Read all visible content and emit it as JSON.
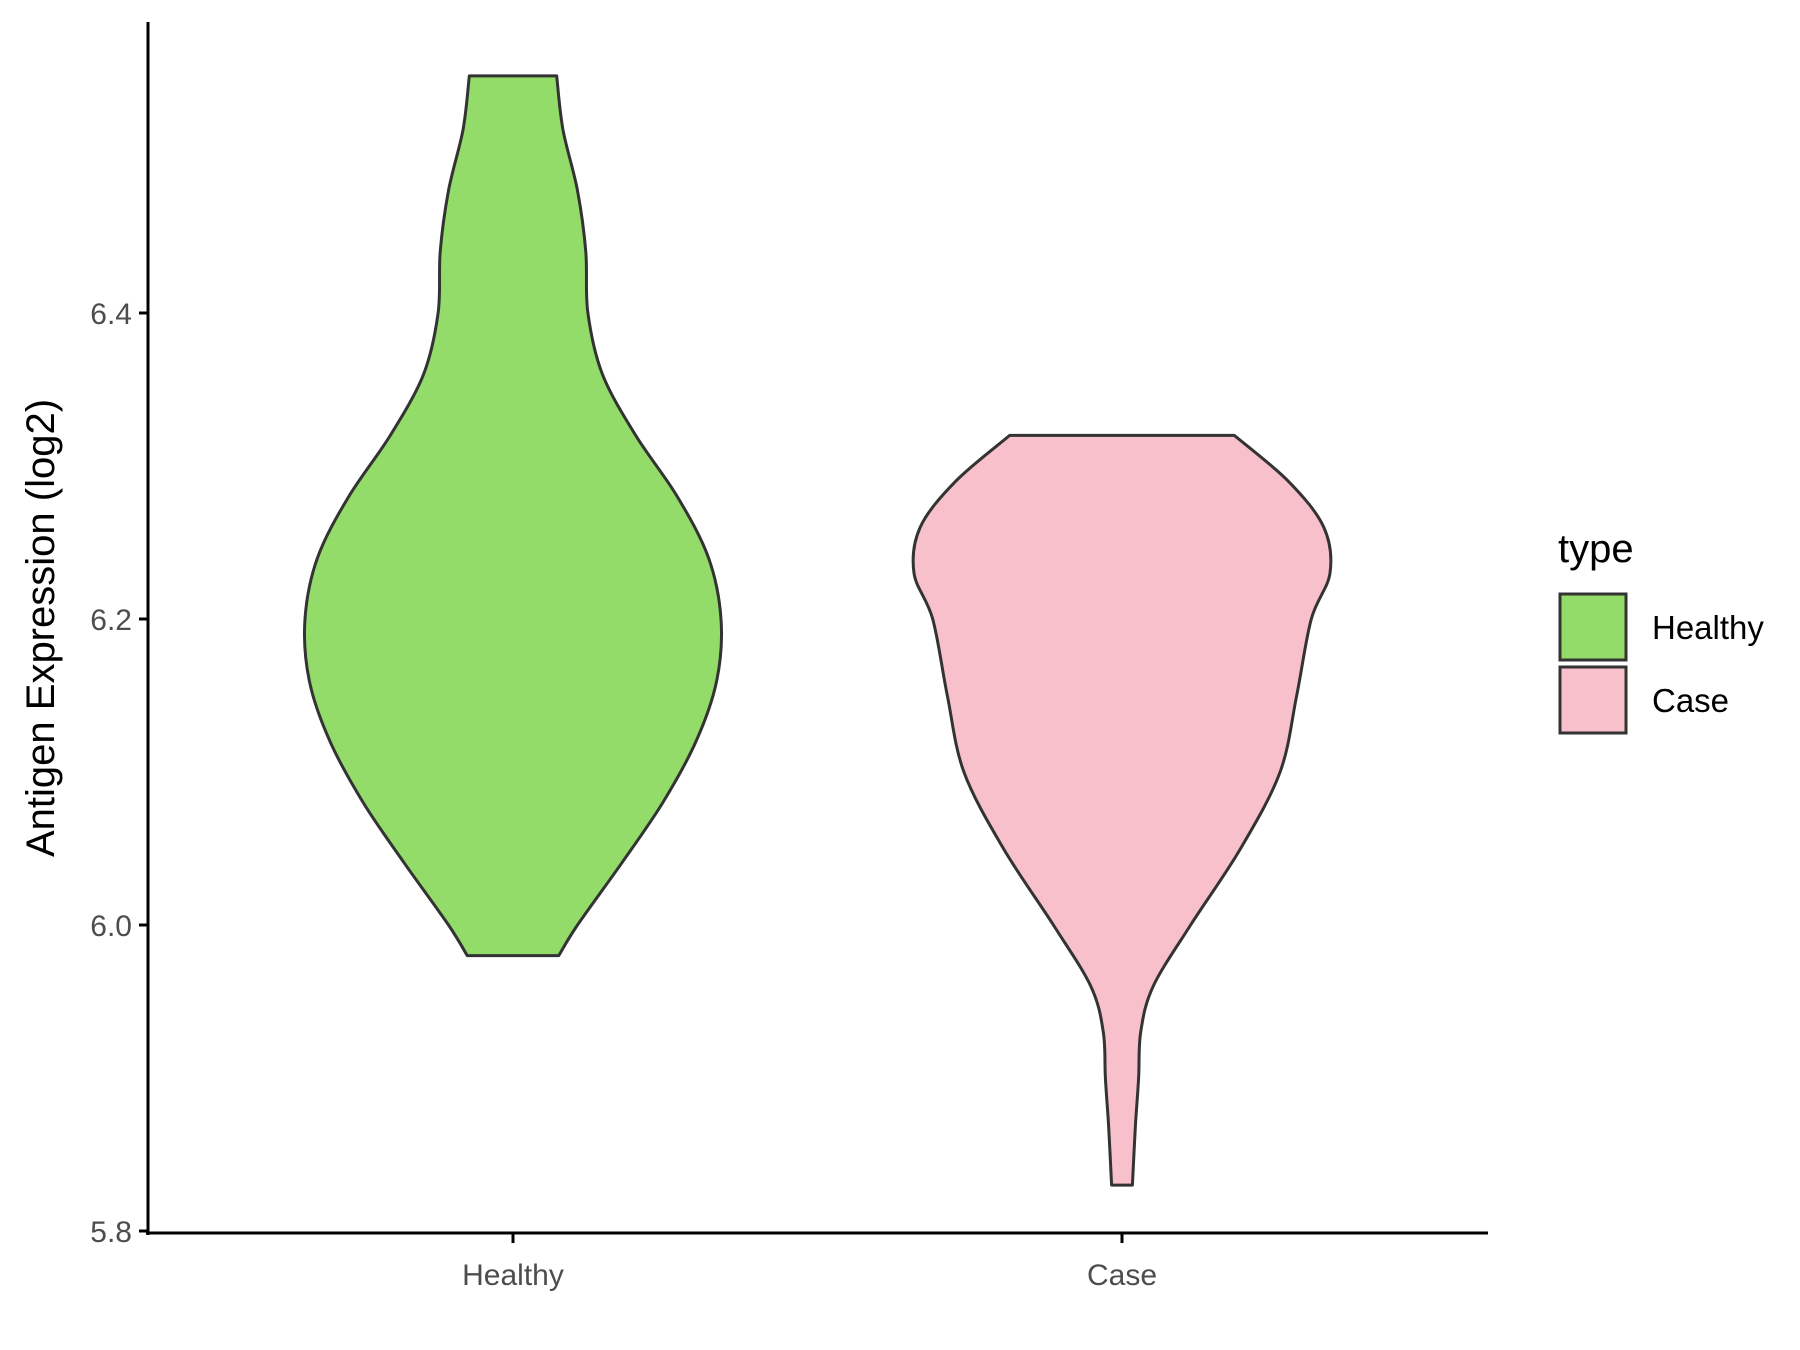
{
  "chart_data": {
    "type": "violin",
    "title": "",
    "xlabel": "",
    "ylabel": "Antigen Expression (log2)",
    "ylim": [
      5.8,
      6.6
    ],
    "yticks": [
      "5.8",
      "6.0",
      "6.2",
      "6.4"
    ],
    "categories": [
      "Healthy",
      "Case"
    ],
    "grid": false,
    "legend": {
      "title": "type",
      "position": "right",
      "entries": [
        {
          "label": "Healthy",
          "color": "#93DC6A"
        },
        {
          "label": "Case",
          "color": "#F7C0CB"
        }
      ]
    },
    "series": [
      {
        "name": "Healthy",
        "color": "#93DC6A",
        "min": 5.98,
        "max": 6.555,
        "density_profile": [
          [
            5.98,
            0.22
          ],
          [
            6.0,
            0.31
          ],
          [
            6.04,
            0.52
          ],
          [
            6.08,
            0.72
          ],
          [
            6.12,
            0.88
          ],
          [
            6.16,
            0.98
          ],
          [
            6.2,
            1.0
          ],
          [
            6.24,
            0.94
          ],
          [
            6.28,
            0.79
          ],
          [
            6.32,
            0.59
          ],
          [
            6.36,
            0.43
          ],
          [
            6.4,
            0.36
          ],
          [
            6.44,
            0.35
          ],
          [
            6.48,
            0.31
          ],
          [
            6.52,
            0.24
          ],
          [
            6.555,
            0.21
          ]
        ]
      },
      {
        "name": "Case",
        "color": "#F7C0CB",
        "min": 5.83,
        "max": 6.32,
        "density_profile": [
          [
            5.83,
            0.05
          ],
          [
            5.87,
            0.065
          ],
          [
            5.9,
            0.08
          ],
          [
            5.93,
            0.09
          ],
          [
            5.96,
            0.15
          ],
          [
            6.0,
            0.33
          ],
          [
            6.05,
            0.57
          ],
          [
            6.1,
            0.76
          ],
          [
            6.15,
            0.84
          ],
          [
            6.2,
            0.91
          ],
          [
            6.23,
            1.0
          ],
          [
            6.26,
            0.97
          ],
          [
            6.29,
            0.8
          ],
          [
            6.32,
            0.54
          ]
        ]
      }
    ]
  }
}
